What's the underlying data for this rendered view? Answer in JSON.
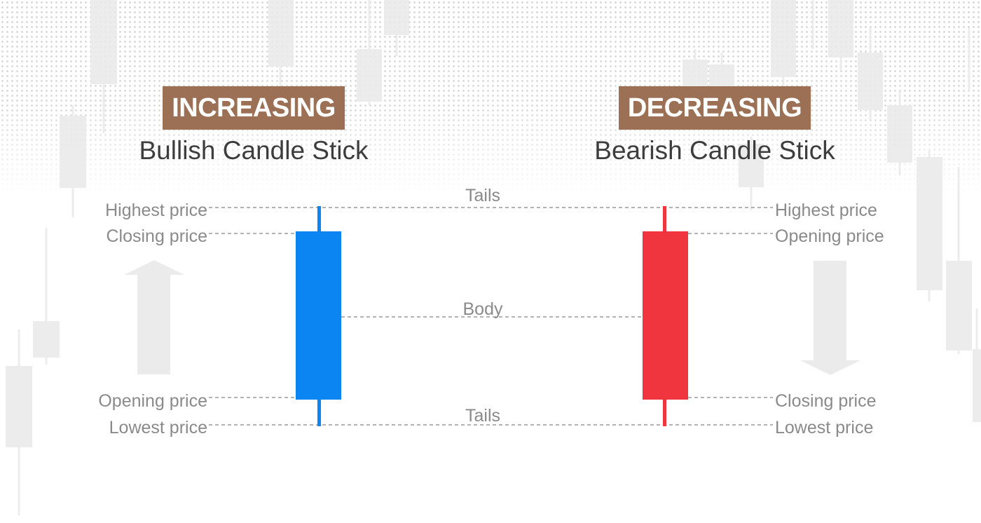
{
  "colors": {
    "badge": "#9b7054",
    "bullish": "#0b85f2",
    "bearish": "#f0353f",
    "guide": "#9a9a9a",
    "label": "#8a8a8a",
    "title": "#3d3d3d",
    "ghost": "#ebebeb",
    "dots": "#d4d4d4"
  },
  "bullish": {
    "badge": "INCREASING",
    "title": "Bullish Candle Stick",
    "labels": {
      "highest": "Highest price",
      "closing": "Closing price",
      "opening": "Opening price",
      "lowest": "Lowest price"
    },
    "arrow_icon": "up-arrow-icon"
  },
  "bearish": {
    "badge": "DECREASING",
    "title": "Bearish Candle Stick",
    "labels": {
      "highest": "Highest price",
      "opening": "Opening price",
      "closing": "Closing price",
      "lowest": "Lowest price"
    },
    "arrow_icon": "down-arrow-icon"
  },
  "center_labels": {
    "tails_top": "Tails",
    "body": "Body",
    "tails_bottom": "Tails"
  }
}
